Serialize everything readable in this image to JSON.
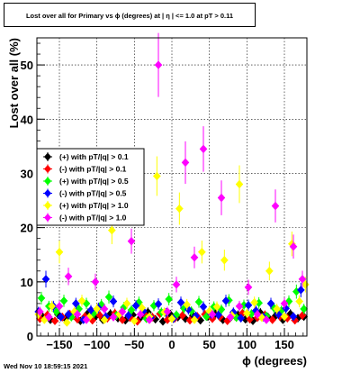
{
  "chart_data": {
    "type": "scatter",
    "title": "Lost over all for Primary vs ϕ (degrees) at | η | <= 1.0 at pT > 0.11",
    "xlabel": "ϕ (degrees)",
    "ylabel": "Lost over all (%)",
    "xlim": [
      -180,
      180
    ],
    "ylim": [
      0,
      55
    ],
    "xticks": [
      -150,
      -100,
      -50,
      0,
      50,
      100,
      150
    ],
    "yticks": [
      0,
      10,
      20,
      30,
      40,
      50
    ],
    "xtick_labels": [
      "−150",
      "−100",
      "−50",
      "0",
      "50",
      "100",
      "150"
    ],
    "ytick_labels": [
      "0",
      "10",
      "20",
      "30",
      "40",
      "50"
    ],
    "grid": true,
    "legend_position": "middle-left",
    "series": [
      {
        "name": "(+) with pT/|q| > 0.1",
        "color": "#000000",
        "x": [
          -172,
          -162,
          -152,
          -142,
          -132,
          -122,
          -112,
          -102,
          -92,
          -82,
          -72,
          -62,
          -52,
          -42,
          -32,
          -22,
          -12,
          -2,
          8,
          18,
          28,
          38,
          48,
          58,
          68,
          78,
          88,
          98,
          108,
          118,
          128,
          138,
          148,
          158,
          168,
          176
        ],
        "y": [
          3.5,
          3.0,
          4.0,
          3.2,
          3.8,
          2.8,
          4.2,
          3.6,
          3.0,
          4.1,
          3.3,
          2.9,
          3.9,
          3.4,
          4.4,
          3.1,
          2.7,
          4.0,
          3.5,
          3.2,
          3.8,
          2.9,
          3.6,
          4.2,
          3.0,
          3.4,
          3.9,
          3.1,
          2.8,
          4.3,
          3.5,
          3.7,
          3.0,
          4.1,
          3.3,
          3.6
        ]
      },
      {
        "name": "(-) with pT/|q| > 0.1",
        "color": "#ff0000",
        "x": [
          -176,
          -166,
          -156,
          -146,
          -136,
          -126,
          -116,
          -106,
          -96,
          -86,
          -76,
          -66,
          -56,
          -46,
          -36,
          -26,
          -16,
          -6,
          4,
          14,
          24,
          34,
          44,
          54,
          64,
          74,
          84,
          94,
          104,
          114,
          124,
          134,
          144,
          154,
          164,
          174
        ],
        "y": [
          3.2,
          3.9,
          2.8,
          3.5,
          4.0,
          3.1,
          3.6,
          2.9,
          3.8,
          3.3,
          4.2,
          3.0,
          3.4,
          2.7,
          3.9,
          3.5,
          4.1,
          3.0,
          3.3,
          3.8,
          2.9,
          3.6,
          4.0,
          3.2,
          3.5,
          2.8,
          3.7,
          4.2,
          3.1,
          3.4,
          3.9,
          3.0,
          3.6,
          3.3,
          2.9,
          3.8
        ]
      },
      {
        "name": "(+) with pT/|q| > 0.5",
        "color": "#00ff00",
        "x": [
          -174,
          -164,
          -154,
          -144,
          -134,
          -124,
          -114,
          -104,
          -94,
          -84,
          -74,
          -64,
          -54,
          -44,
          -34,
          -24,
          -14,
          -4,
          6,
          16,
          26,
          36,
          46,
          56,
          66,
          76,
          86,
          96,
          106,
          116,
          126,
          136,
          146,
          156,
          166,
          176
        ],
        "y": [
          7.0,
          5.5,
          4.5,
          6.5,
          3.5,
          5.0,
          6.0,
          4.2,
          5.8,
          7.2,
          3.8,
          5.3,
          4.8,
          6.2,
          3.2,
          5.6,
          4.4,
          6.8,
          3.9,
          5.1,
          4.6,
          6.3,
          3.6,
          5.4,
          4.9,
          6.6,
          3.4,
          5.7,
          4.1,
          6.1,
          3.7,
          5.2,
          4.7,
          6.4,
          8.2,
          5.0
        ]
      },
      {
        "name": "(-) with pT/|q| > 0.5",
        "color": "#0000ff",
        "x": [
          -178,
          -168,
          -158,
          -148,
          -138,
          -128,
          -118,
          -108,
          -98,
          -88,
          -78,
          -68,
          -58,
          -48,
          -38,
          -28,
          -18,
          -8,
          2,
          12,
          22,
          32,
          42,
          52,
          62,
          72,
          82,
          92,
          102,
          112,
          122,
          132,
          142,
          152,
          162,
          172
        ],
        "y": [
          4.5,
          10.5,
          5.5,
          3.5,
          4.0,
          6.0,
          3.0,
          4.8,
          5.2,
          3.6,
          6.4,
          4.2,
          3.8,
          5.6,
          4.6,
          3.4,
          5.9,
          4.3,
          3.2,
          6.2,
          4.9,
          3.7,
          5.4,
          4.1,
          3.9,
          6.5,
          4.4,
          3.3,
          5.7,
          4.7,
          3.5,
          6.0,
          4.0,
          5.1,
          3.6,
          8.5
        ]
      },
      {
        "name": "(+) with pT/|q| > 1.0",
        "color": "#ffff00",
        "x": [
          -178,
          -170,
          -160,
          -150,
          -140,
          -130,
          -120,
          -110,
          -100,
          -90,
          -80,
          -70,
          -60,
          -50,
          -40,
          -30,
          -20,
          -10,
          0,
          10,
          20,
          30,
          40,
          50,
          60,
          70,
          80,
          90,
          100,
          110,
          120,
          130,
          140,
          150,
          160,
          170,
          178
        ],
        "y": [
          4.0,
          3.0,
          5.5,
          15.5,
          2.5,
          4.5,
          6.5,
          3.5,
          5.0,
          3.0,
          19.5,
          4.0,
          6.0,
          2.8,
          5.2,
          3.6,
          29.5,
          4.4,
          3.2,
          23.5,
          5.8,
          3.0,
          15.5,
          4.6,
          5.4,
          14.0,
          3.8,
          28.0,
          4.2,
          6.2,
          3.4,
          12.0,
          5.0,
          3.6,
          17.0,
          6.4,
          9.5
        ]
      },
      {
        "name": "(-) with pT/|q| > 1.0",
        "color": "#ff00ff",
        "x": [
          -176,
          -164,
          -150,
          -138,
          -126,
          -114,
          -102,
          -90,
          -78,
          -66,
          -54,
          -42,
          -30,
          -18,
          -6,
          6,
          18,
          30,
          42,
          54,
          66,
          78,
          90,
          102,
          114,
          126,
          138,
          150,
          162,
          174
        ],
        "y": [
          4.5,
          3.5,
          5.5,
          11.0,
          4.0,
          3.0,
          10.0,
          5.0,
          3.5,
          4.5,
          17.5,
          4.0,
          3.0,
          50.0,
          4.5,
          9.5,
          32.0,
          14.5,
          34.5,
          4.0,
          25.5,
          3.5,
          5.5,
          9.0,
          4.0,
          3.0,
          24.0,
          6.0,
          16.5,
          10.5
        ]
      }
    ],
    "error_bars": {
      "vertical": true,
      "horizontal": true
    }
  },
  "footer": {
    "date": "Wed Nov 10 18:59:15 2021"
  }
}
